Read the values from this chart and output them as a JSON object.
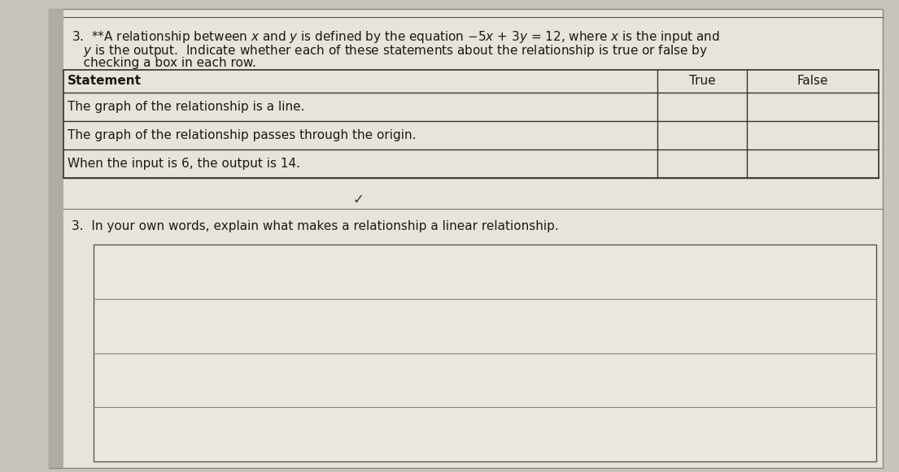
{
  "bg_color": "#c8c4bc",
  "paper_color": "#e8e4dc",
  "title_line1": "3.  **A relationship between x and y is defined by the equation −5x + 3y = 12, where x is the input and",
  "title_line2": "   y is the output.  Indicate whether each of these statements about the relationship is true or false by",
  "title_line3": "   checking a box in each row.",
  "table_header_col0": "Statement",
  "table_header_col1": "True",
  "table_header_col2": "False",
  "table_rows": [
    "The graph of the relationship is a line.",
    "The graph of the relationship passes through the origin.",
    "When the input is 6, the output is 14."
  ],
  "part2_label": "3.",
  "part2_text": "In your own words, explain what makes a relationship a linear relationship.",
  "checkmark": "✓",
  "font_size": 11,
  "line_color": "#555550",
  "border_color": "#444440"
}
